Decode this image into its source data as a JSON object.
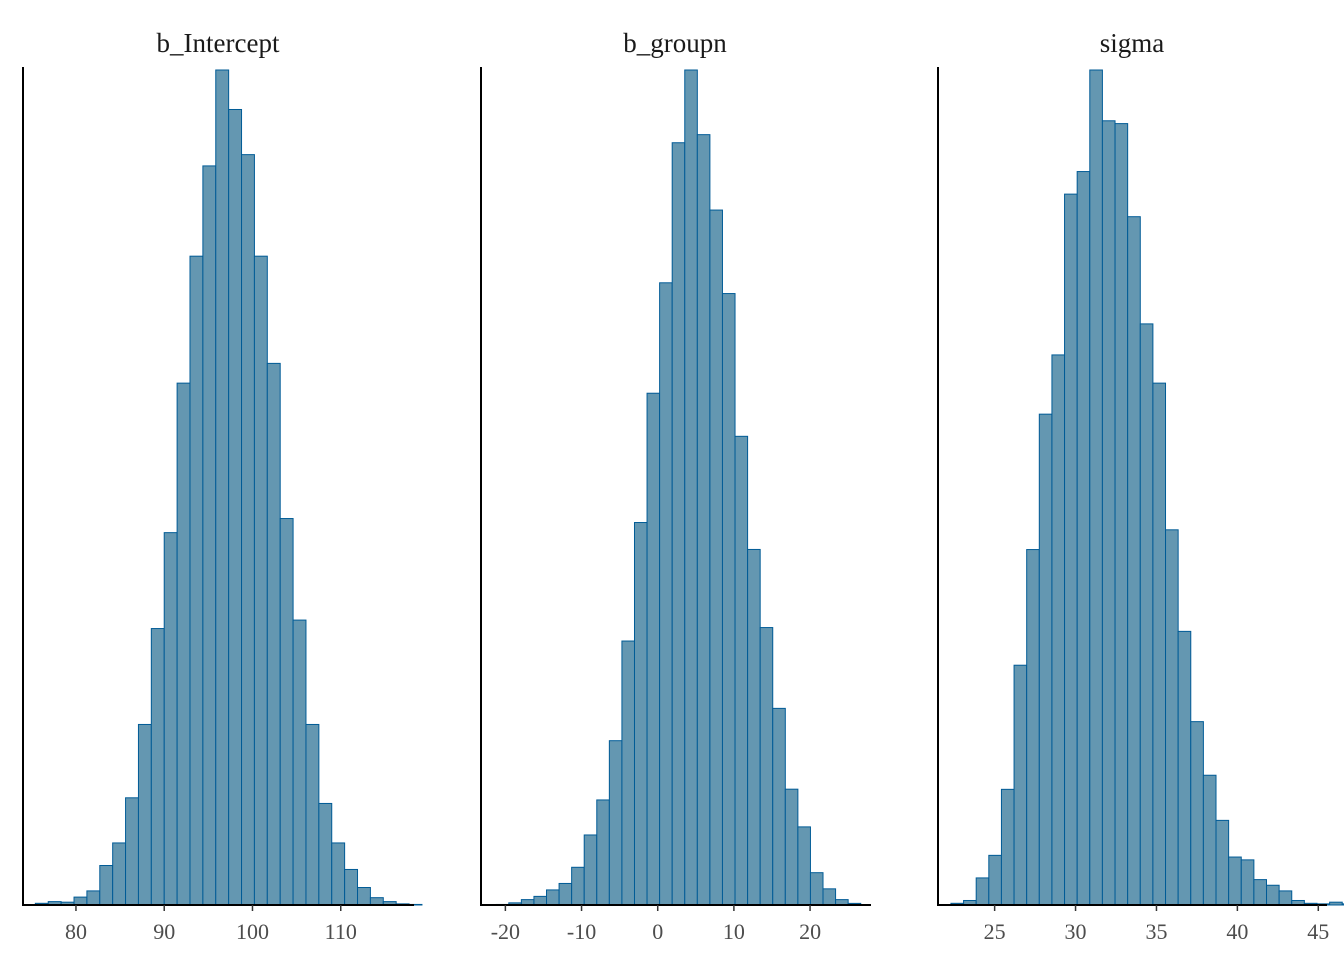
{
  "figure": {
    "fill_color": "#6497b1",
    "stroke_color": "#005b96"
  },
  "chart_data": [
    {
      "type": "bar",
      "title": "b_Intercept",
      "xlabel": "",
      "ylabel": "",
      "xlim": [
        74.0,
        118.3
      ],
      "xticks": [
        80,
        90,
        100,
        110
      ],
      "xtick_labels": [
        "80",
        "90",
        "100",
        "110"
      ],
      "bin_start": 75.4,
      "bin_width": 1.46,
      "values": [
        3,
        6,
        5,
        14,
        25,
        70,
        110,
        190,
        320,
        490,
        660,
        925,
        1150,
        1310,
        1480,
        1410,
        1330,
        1150,
        960,
        685,
        505,
        320,
        180,
        110,
        63,
        31,
        13,
        6,
        2,
        1,
        0
      ],
      "grid": false
    },
    {
      "type": "bar",
      "title": "b_groupn",
      "xlabel": "",
      "ylabel": "",
      "xlim": [
        -23.2,
        28.0
      ],
      "xticks": [
        -20,
        -10,
        0,
        10,
        20
      ],
      "xtick_labels": [
        "-20",
        "-10",
        "0",
        "10",
        "20"
      ],
      "bin_start": -21.2,
      "bin_width": 1.65,
      "values": [
        1,
        4,
        10,
        16,
        28,
        40,
        70,
        130,
        195,
        305,
        490,
        710,
        950,
        1155,
        1415,
        1550,
        1430,
        1290,
        1135,
        870,
        660,
        515,
        365,
        215,
        145,
        60,
        30,
        10,
        3,
        0,
        0
      ],
      "grid": false
    },
    {
      "type": "bar",
      "title": "sigma",
      "xlabel": "",
      "ylabel": "",
      "xlim": [
        21.5,
        45.6
      ],
      "xticks": [
        25,
        30,
        35,
        40,
        45
      ],
      "xtick_labels": [
        "25",
        "30",
        "35",
        "40",
        "45"
      ],
      "bin_start": 22.3,
      "bin_width": 0.78,
      "values": [
        3,
        8,
        48,
        88,
        205,
        425,
        630,
        870,
        975,
        1260,
        1300,
        1480,
        1390,
        1385,
        1220,
        1030,
        925,
        665,
        485,
        325,
        230,
        150,
        85,
        80,
        45,
        35,
        25,
        8,
        3,
        2,
        5,
        2,
        0
      ],
      "grid": false
    }
  ]
}
